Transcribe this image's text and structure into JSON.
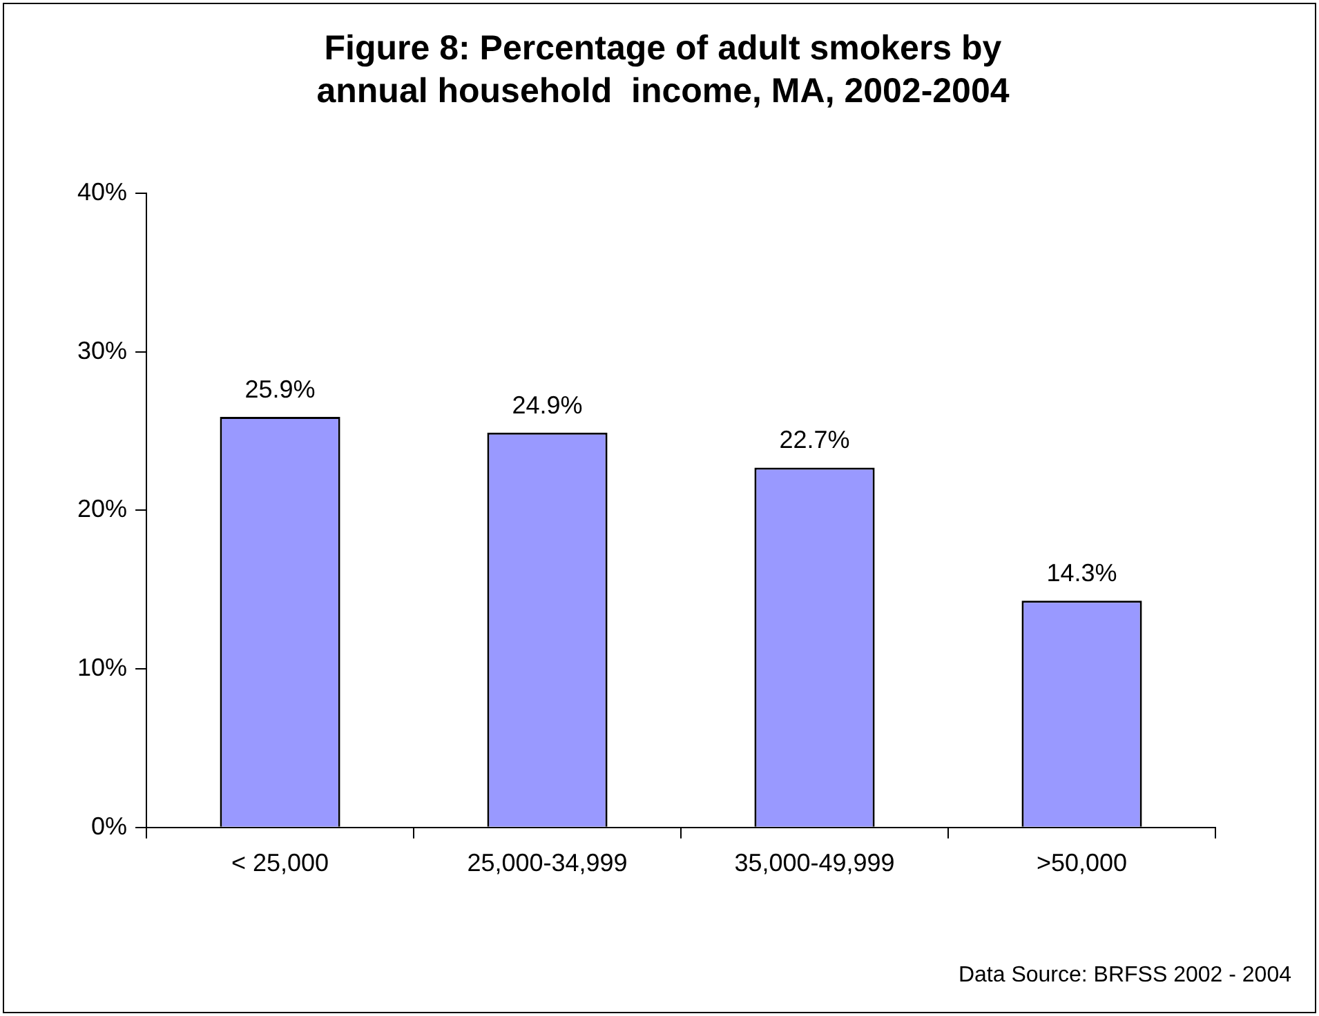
{
  "chart_data": {
    "type": "bar",
    "title": "Figure 8: Percentage of adult smokers by annual household  income, MA, 2002-2004",
    "categories": [
      "< 25,000",
      "25,000-34,999",
      "35,000-49,999",
      ">50,000"
    ],
    "values": [
      25.9,
      24.9,
      22.7,
      14.3
    ],
    "value_labels": [
      "25.9%",
      "24.9%",
      "22.7%",
      "14.3%"
    ],
    "color": "#9999ff",
    "ylim": [
      0,
      40
    ],
    "yticks": [
      {
        "value": 0,
        "label": "0%"
      },
      {
        "value": 10,
        "label": "10%"
      },
      {
        "value": 20,
        "label": "20%"
      },
      {
        "value": 30,
        "label": "30%"
      },
      {
        "value": 40,
        "label": "40%"
      }
    ],
    "grid": false,
    "legend": false,
    "annotations": [
      "Data Source: BRFSS 2002 - 2004"
    ]
  }
}
